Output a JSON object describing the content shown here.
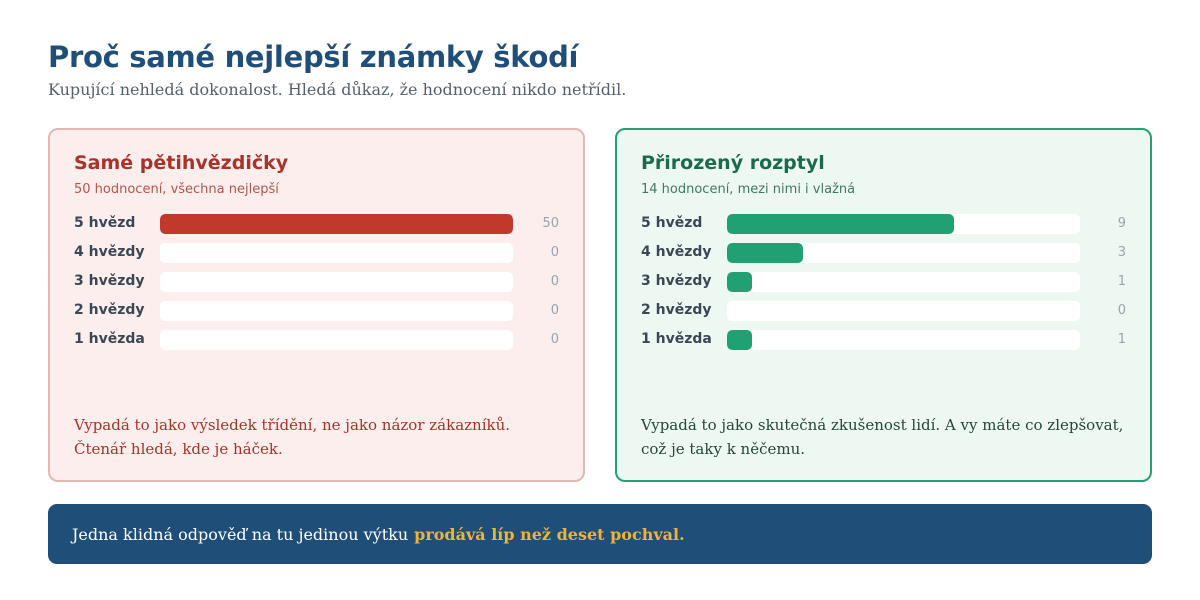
{
  "header": {
    "title": "Proč samé nejlepší známky škodí",
    "subtitle": "Kupující nehledá dokonalost. Hledá důkaz, že hodnocení nikdo netřídil."
  },
  "cards": {
    "bad": {
      "title": "Samé pětihvězdičky",
      "subtitle": "50 hodnocení, všechna nejlepší",
      "max": 50,
      "rows": [
        {
          "label": "5 hvězd",
          "count": 50
        },
        {
          "label": "4 hvězdy",
          "count": 0
        },
        {
          "label": "3 hvězdy",
          "count": 0
        },
        {
          "label": "2 hvězdy",
          "count": 0
        },
        {
          "label": "1 hvězda",
          "count": 0
        }
      ],
      "note": "Vypadá to jako výsledek třídění, ne jako názor zákazníků. Čtenář hledá, kde je háček.",
      "color": "#c0392b"
    },
    "good": {
      "title": "Přirozený rozptyl",
      "subtitle": "14 hodnocení, mezi nimi i vlažná",
      "max": 14,
      "rows": [
        {
          "label": "5 hvězd",
          "count": 9
        },
        {
          "label": "4 hvězdy",
          "count": 3
        },
        {
          "label": "3 hvězdy",
          "count": 1
        },
        {
          "label": "2 hvězdy",
          "count": 0
        },
        {
          "label": "1 hvězda",
          "count": 1
        }
      ],
      "note": "Vypadá to jako skutečná zkušenost lidí. A vy máte co zlepšovat, což je taky k něčemu.",
      "color": "#21a074"
    }
  },
  "banner": {
    "text": "Jedna klidná odpověď na tu jedinou výtku",
    "highlight": "prodává líp než deset pochval.",
    "highlight_color": "#f2b233"
  }
}
